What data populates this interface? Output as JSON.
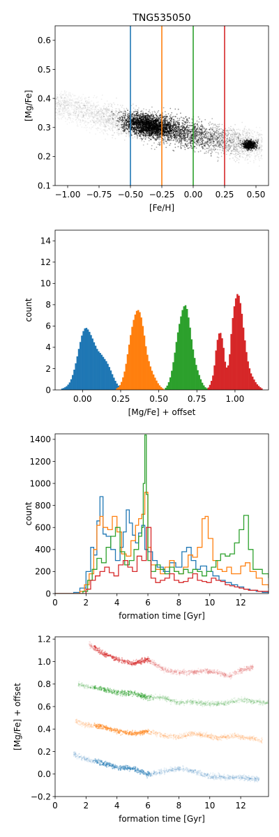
{
  "colors": {
    "blue": "#1f77b4",
    "orange": "#ff7f0e",
    "green": "#2ca02c",
    "red": "#d62728",
    "black": "#000000"
  },
  "chart_data": [
    {
      "type": "scatter",
      "title": "TNG535050",
      "xlabel": "[Fe/H]",
      "ylabel": "[Mg/Fe]",
      "xlim": [
        -1.1,
        0.6
      ],
      "ylim": [
        0.1,
        0.65
      ],
      "xticks": [
        "−1.00",
        "−0.75",
        "−0.50",
        "−0.25",
        "0.00",
        "0.25",
        "0.50"
      ],
      "xtick_values": [
        -1.0,
        -0.75,
        -0.5,
        -0.25,
        0.0,
        0.25,
        0.5
      ],
      "yticks": [
        "0.1",
        "0.2",
        "0.3",
        "0.4",
        "0.5",
        "0.6"
      ],
      "ytick_values": [
        0.1,
        0.2,
        0.3,
        0.4,
        0.5,
        0.6
      ],
      "vlines": [
        {
          "x": -0.5,
          "color": "#1f77b4"
        },
        {
          "x": -0.25,
          "color": "#ff7f0e"
        },
        {
          "x": 0.0,
          "color": "#2ca02c"
        },
        {
          "x": 0.25,
          "color": "#d62728"
        }
      ],
      "density_trend": {
        "x": [
          -1.05,
          -0.75,
          -0.5,
          -0.25,
          0.0,
          0.25,
          0.5
        ],
        "y": [
          0.38,
          0.34,
          0.315,
          0.3,
          0.275,
          0.25,
          0.24
        ]
      },
      "grid": false
    },
    {
      "type": "bar",
      "subtype": "histogram",
      "xlabel": "[Mg/Fe] + offset",
      "ylabel": "count",
      "xlim": [
        -0.18,
        1.22
      ],
      "ylim": [
        0,
        15
      ],
      "xticks": [
        "0.00",
        "0.25",
        "0.50",
        "0.75",
        "1.00"
      ],
      "xtick_values": [
        0.0,
        0.25,
        0.5,
        0.75,
        1.0
      ],
      "yticks": [
        "0",
        "2",
        "4",
        "6",
        "8",
        "10",
        "12",
        "14"
      ],
      "ytick_values": [
        0,
        2,
        4,
        6,
        8,
        10,
        12,
        14
      ],
      "bin_width": 0.01,
      "series": [
        {
          "color": "#1f77b4",
          "x": [
            -0.14,
            -0.12,
            -0.1,
            -0.08,
            -0.06,
            -0.04,
            -0.02,
            0.0,
            0.02,
            0.04,
            0.06,
            0.08,
            0.1,
            0.12,
            0.14,
            0.16,
            0.18,
            0.2,
            0.22,
            0.24,
            0.26,
            0.28
          ],
          "values": [
            0.1,
            0.2,
            0.4,
            0.8,
            1.6,
            2.8,
            4.2,
            5.4,
            5.9,
            5.6,
            5.0,
            4.3,
            3.7,
            3.4,
            3.0,
            2.6,
            2.0,
            1.3,
            0.7,
            0.3,
            0.1,
            0.0
          ]
        },
        {
          "color": "#ff7f0e",
          "x": [
            0.22,
            0.24,
            0.26,
            0.28,
            0.3,
            0.32,
            0.34,
            0.36,
            0.38,
            0.4,
            0.42,
            0.44,
            0.46,
            0.48,
            0.5,
            0.52,
            0.54
          ],
          "values": [
            0.1,
            0.3,
            0.9,
            2.0,
            3.8,
            5.6,
            6.9,
            7.6,
            7.2,
            5.6,
            3.6,
            2.4,
            1.6,
            1.0,
            0.5,
            0.2,
            0.0
          ]
        },
        {
          "color": "#2ca02c",
          "x": [
            0.54,
            0.56,
            0.58,
            0.6,
            0.62,
            0.64,
            0.66,
            0.68,
            0.7,
            0.72,
            0.74,
            0.76,
            0.78,
            0.8,
            0.82
          ],
          "values": [
            0.1,
            0.5,
            1.4,
            3.0,
            5.0,
            6.6,
            7.8,
            8.0,
            6.4,
            4.2,
            2.6,
            1.6,
            0.8,
            0.3,
            0.1
          ]
        },
        {
          "color": "#d62728",
          "x": [
            0.82,
            0.84,
            0.86,
            0.88,
            0.9,
            0.92,
            0.94,
            0.96,
            0.98,
            1.0,
            1.02,
            1.04,
            1.06,
            1.08,
            1.1,
            1.12,
            1.14,
            1.16,
            1.18
          ],
          "values": [
            0.1,
            0.6,
            1.6,
            4.4,
            5.6,
            4.6,
            2.0,
            2.4,
            6.2,
            8.4,
            9.2,
            7.8,
            5.2,
            3.0,
            1.7,
            1.1,
            0.6,
            0.3,
            0.1
          ]
        }
      ],
      "grid": false
    },
    {
      "type": "line",
      "subtype": "step",
      "xlabel": "formation time [Gyr]",
      "ylabel": "count",
      "xlim": [
        0,
        13.8
      ],
      "ylim": [
        0,
        1450
      ],
      "xticks": [
        "0",
        "2",
        "4",
        "6",
        "8",
        "10",
        "12"
      ],
      "xtick_values": [
        0,
        2,
        4,
        6,
        8,
        10,
        12
      ],
      "yticks": [
        "0",
        "200",
        "400",
        "600",
        "800",
        "1000",
        "1200",
        "1400"
      ],
      "ytick_values": [
        0,
        200,
        400,
        600,
        800,
        1000,
        1200,
        1400
      ],
      "series": [
        {
          "color": "#1f77b4",
          "x": [
            0.0,
            1.2,
            1.6,
            2.0,
            2.3,
            2.5,
            2.7,
            2.9,
            3.1,
            3.3,
            3.6,
            3.9,
            4.2,
            4.4,
            4.6,
            4.8,
            5.0,
            5.2,
            5.4,
            5.6,
            5.8,
            6.0,
            6.3,
            6.6,
            7.0,
            7.4,
            7.8,
            8.2,
            8.5,
            8.8,
            9.1,
            9.4,
            9.8,
            10.2,
            10.6,
            11.0,
            11.4,
            11.8,
            12.2,
            12.6,
            13.0,
            13.4,
            13.8
          ],
          "values": [
            0,
            10,
            50,
            200,
            420,
            350,
            660,
            880,
            540,
            520,
            400,
            300,
            420,
            560,
            760,
            640,
            530,
            460,
            550,
            620,
            400,
            380,
            300,
            240,
            200,
            280,
            240,
            380,
            420,
            300,
            220,
            250,
            200,
            160,
            120,
            100,
            80,
            60,
            40,
            30,
            20,
            10,
            0
          ]
        },
        {
          "color": "#ff7f0e",
          "x": [
            0.0,
            1.6,
            1.9,
            2.2,
            2.5,
            2.7,
            2.9,
            3.1,
            3.4,
            3.7,
            4.0,
            4.3,
            4.6,
            4.9,
            5.2,
            5.4,
            5.6,
            5.8,
            6.0,
            6.2,
            6.5,
            6.8,
            7.1,
            7.4,
            7.7,
            8.0,
            8.3,
            8.6,
            8.9,
            9.2,
            9.5,
            9.7,
            9.9,
            10.2,
            10.5,
            10.8,
            11.1,
            11.4,
            11.7,
            12.0,
            12.3,
            12.6,
            13.0,
            13.4,
            13.8
          ],
          "values": [
            0,
            20,
            80,
            180,
            400,
            620,
            700,
            600,
            580,
            700,
            560,
            360,
            340,
            480,
            620,
            680,
            720,
            920,
            420,
            260,
            220,
            180,
            240,
            300,
            200,
            180,
            240,
            350,
            330,
            420,
            680,
            700,
            500,
            300,
            220,
            200,
            240,
            180,
            180,
            250,
            280,
            200,
            140,
            80,
            50
          ]
        },
        {
          "color": "#2ca02c",
          "x": [
            0.0,
            1.8,
            2.1,
            2.4,
            2.7,
            3.0,
            3.3,
            3.6,
            3.9,
            4.2,
            4.5,
            4.8,
            5.1,
            5.4,
            5.6,
            5.7,
            5.8,
            5.9,
            6.0,
            6.2,
            6.5,
            6.8,
            7.1,
            7.4,
            7.7,
            8.0,
            8.3,
            8.6,
            8.9,
            9.2,
            9.5,
            9.8,
            10.1,
            10.4,
            10.7,
            11.0,
            11.3,
            11.6,
            11.9,
            12.2,
            12.5,
            12.8,
            13.1,
            13.4,
            13.8
          ],
          "values": [
            0,
            20,
            120,
            220,
            320,
            280,
            420,
            520,
            600,
            380,
            260,
            300,
            400,
            520,
            600,
            1000,
            1440,
            900,
            300,
            200,
            260,
            220,
            180,
            240,
            200,
            180,
            220,
            190,
            220,
            200,
            160,
            200,
            240,
            300,
            360,
            340,
            360,
            460,
            580,
            710,
            400,
            220,
            220,
            180,
            140
          ]
        },
        {
          "color": "#d62728",
          "x": [
            0.0,
            2.0,
            2.3,
            2.6,
            2.9,
            3.2,
            3.5,
            3.8,
            4.1,
            4.4,
            4.7,
            5.0,
            5.3,
            5.6,
            5.9,
            6.2,
            6.5,
            6.8,
            7.1,
            7.4,
            7.7,
            8.0,
            8.3,
            8.6,
            8.9,
            9.2,
            9.5,
            9.8,
            10.1,
            10.4,
            10.7,
            11.0,
            11.3,
            11.6,
            11.9,
            12.2,
            12.5,
            12.8,
            13.1,
            13.4,
            13.8
          ],
          "values": [
            0,
            40,
            120,
            160,
            200,
            240,
            190,
            160,
            260,
            300,
            240,
            200,
            340,
            300,
            600,
            140,
            100,
            120,
            140,
            180,
            120,
            100,
            110,
            140,
            180,
            120,
            110,
            100,
            140,
            120,
            110,
            80,
            70,
            60,
            50,
            40,
            30,
            30,
            20,
            20,
            10
          ]
        }
      ],
      "grid": false
    },
    {
      "type": "scatter",
      "xlabel": "formation time [Gyr]",
      "ylabel": "[Mg/Fe] + offset",
      "xlim": [
        0,
        13.8
      ],
      "ylim": [
        -0.2,
        1.22
      ],
      "xticks": [
        "0",
        "2",
        "4",
        "6",
        "8",
        "10",
        "12"
      ],
      "xtick_values": [
        0,
        2,
        4,
        6,
        8,
        10,
        12
      ],
      "yticks": [
        "−0.2",
        "0.0",
        "0.2",
        "0.4",
        "0.6",
        "0.8",
        "1.0",
        "1.2"
      ],
      "ytick_values": [
        -0.2,
        0.0,
        0.2,
        0.4,
        0.6,
        0.8,
        1.0,
        1.2
      ],
      "series": [
        {
          "color": "#1f77b4",
          "x": [
            1.2,
            2.0,
            3.0,
            4.0,
            5.0,
            6.0,
            7.0,
            8.0,
            9.0,
            10.0,
            11.0,
            12.0,
            13.2
          ],
          "values": [
            0.18,
            0.13,
            0.1,
            0.06,
            0.05,
            0.0,
            0.02,
            0.05,
            0.02,
            -0.02,
            -0.03,
            -0.03,
            -0.05
          ]
        },
        {
          "color": "#ff7f0e",
          "x": [
            1.3,
            2.0,
            3.0,
            4.0,
            5.0,
            6.0,
            7.0,
            8.0,
            9.0,
            9.8,
            10.5,
            11.5,
            12.5,
            13.4
          ],
          "values": [
            0.47,
            0.44,
            0.42,
            0.38,
            0.36,
            0.38,
            0.34,
            0.33,
            0.36,
            0.34,
            0.32,
            0.34,
            0.32,
            0.3
          ]
        },
        {
          "color": "#2ca02c",
          "x": [
            1.5,
            2.0,
            3.0,
            4.0,
            5.0,
            6.0,
            7.0,
            8.0,
            9.0,
            10.0,
            11.0,
            12.0,
            13.0,
            13.8
          ],
          "values": [
            0.8,
            0.78,
            0.76,
            0.72,
            0.72,
            0.68,
            0.68,
            0.63,
            0.64,
            0.62,
            0.63,
            0.66,
            0.64,
            0.63
          ]
        },
        {
          "color": "#d62728",
          "x": [
            2.2,
            3.0,
            4.0,
            5.0,
            6.0,
            7.0,
            8.0,
            8.6,
            9.6,
            10.6,
            11.3,
            12.0,
            12.8
          ],
          "values": [
            1.15,
            1.08,
            1.02,
            0.98,
            1.02,
            0.93,
            0.9,
            0.9,
            0.92,
            0.9,
            0.87,
            0.92,
            0.95
          ]
        }
      ],
      "grid": false
    }
  ]
}
